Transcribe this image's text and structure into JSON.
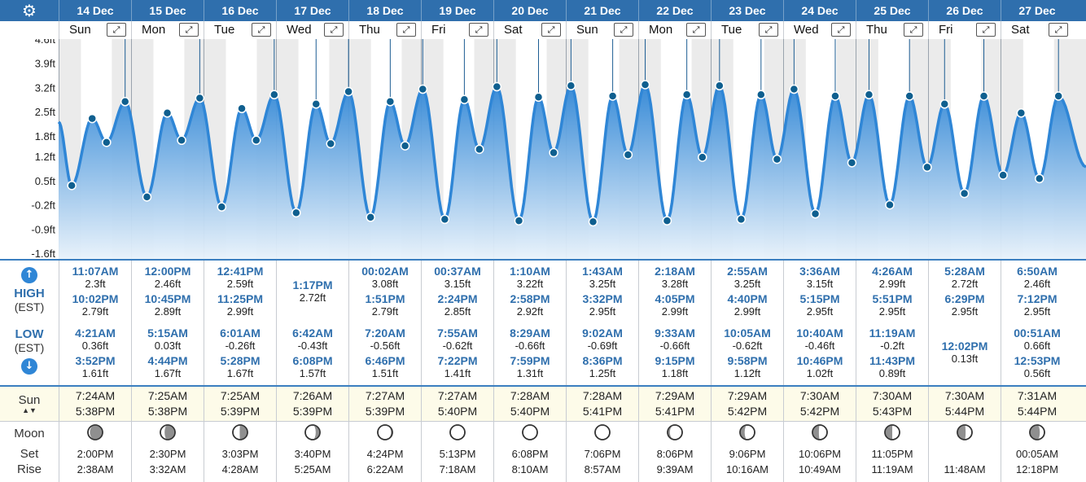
{
  "header": {
    "settings_icon": "gear-icon",
    "expand_icon_glyph": "⤢"
  },
  "days": [
    {
      "date": "14 Dec",
      "dow": "Sun",
      "high": [
        {
          "time": "11:07AM",
          "height": "2.3ft"
        },
        {
          "time": "10:02PM",
          "height": "2.79ft"
        }
      ],
      "low": [
        {
          "time": "4:21AM",
          "height": "0.36ft"
        },
        {
          "time": "3:52PM",
          "height": "1.61ft"
        }
      ],
      "sunrise": "7:24AM",
      "sunset": "5:38PM",
      "moon_set": "2:00PM",
      "moon_rise": "2:38AM",
      "moon_phase": 0.62
    },
    {
      "date": "15 Dec",
      "dow": "Mon",
      "high": [
        {
          "time": "12:00PM",
          "height": "2.46ft"
        },
        {
          "time": "10:45PM",
          "height": "2.89ft"
        }
      ],
      "low": [
        {
          "time": "5:15AM",
          "height": "0.03ft"
        },
        {
          "time": "4:44PM",
          "height": "1.67ft"
        }
      ],
      "sunrise": "7:25AM",
      "sunset": "5:38PM",
      "moon_set": "2:30PM",
      "moon_rise": "3:32AM",
      "moon_phase": 0.68
    },
    {
      "date": "16 Dec",
      "dow": "Tue",
      "high": [
        {
          "time": "12:41PM",
          "height": "2.59ft"
        },
        {
          "time": "11:25PM",
          "height": "2.99ft"
        }
      ],
      "low": [
        {
          "time": "6:01AM",
          "height": "-0.26ft"
        },
        {
          "time": "5:28PM",
          "height": "1.67ft"
        }
      ],
      "sunrise": "7:25AM",
      "sunset": "5:39PM",
      "moon_set": "3:03PM",
      "moon_rise": "4:28AM",
      "moon_phase": 0.74
    },
    {
      "date": "17 Dec",
      "dow": "Wed",
      "high": [
        {
          "time": "1:17PM",
          "height": "2.72ft"
        }
      ],
      "low": [
        {
          "time": "6:42AM",
          "height": "-0.43ft"
        },
        {
          "time": "6:08PM",
          "height": "1.57ft"
        }
      ],
      "sunrise": "7:26AM",
      "sunset": "5:39PM",
      "moon_set": "3:40PM",
      "moon_rise": "5:25AM",
      "moon_phase": 0.82
    },
    {
      "date": "18 Dec",
      "dow": "Thu",
      "high": [
        {
          "time": "00:02AM",
          "height": "3.08ft"
        },
        {
          "time": "1:51PM",
          "height": "2.79ft"
        }
      ],
      "low": [
        {
          "time": "7:20AM",
          "height": "-0.56ft"
        },
        {
          "time": "6:46PM",
          "height": "1.51ft"
        }
      ],
      "sunrise": "7:27AM",
      "sunset": "5:39PM",
      "moon_set": "4:24PM",
      "moon_rise": "6:22AM",
      "moon_phase": 0.9
    },
    {
      "date": "19 Dec",
      "dow": "Fri",
      "high": [
        {
          "time": "00:37AM",
          "height": "3.15ft"
        },
        {
          "time": "2:24PM",
          "height": "2.85ft"
        }
      ],
      "low": [
        {
          "time": "7:55AM",
          "height": "-0.62ft"
        },
        {
          "time": "7:22PM",
          "height": "1.41ft"
        }
      ],
      "sunrise": "7:27AM",
      "sunset": "5:40PM",
      "moon_set": "5:13PM",
      "moon_rise": "7:18AM",
      "moon_phase": 0.97
    },
    {
      "date": "20 Dec",
      "dow": "Sat",
      "high": [
        {
          "time": "1:10AM",
          "height": "3.22ft"
        },
        {
          "time": "2:58PM",
          "height": "2.92ft"
        }
      ],
      "low": [
        {
          "time": "8:29AM",
          "height": "-0.66ft"
        },
        {
          "time": "7:59PM",
          "height": "1.31ft"
        }
      ],
      "sunrise": "7:28AM",
      "sunset": "5:40PM",
      "moon_set": "6:08PM",
      "moon_rise": "8:10AM",
      "moon_phase": 0.02
    },
    {
      "date": "21 Dec",
      "dow": "Sun",
      "high": [
        {
          "time": "1:43AM",
          "height": "3.25ft"
        },
        {
          "time": "3:32PM",
          "height": "2.95ft"
        }
      ],
      "low": [
        {
          "time": "9:02AM",
          "height": "-0.69ft"
        },
        {
          "time": "8:36PM",
          "height": "1.25ft"
        }
      ],
      "sunrise": "7:28AM",
      "sunset": "5:41PM",
      "moon_set": "7:06PM",
      "moon_rise": "8:57AM",
      "moon_phase": 0.07
    },
    {
      "date": "22 Dec",
      "dow": "Mon",
      "high": [
        {
          "time": "2:18AM",
          "height": "3.28ft"
        },
        {
          "time": "4:05PM",
          "height": "2.99ft"
        }
      ],
      "low": [
        {
          "time": "9:33AM",
          "height": "-0.66ft"
        },
        {
          "time": "9:15PM",
          "height": "1.18ft"
        }
      ],
      "sunrise": "7:29AM",
      "sunset": "5:41PM",
      "moon_set": "8:06PM",
      "moon_rise": "9:39AM",
      "moon_phase": 0.13
    },
    {
      "date": "23 Dec",
      "dow": "Tue",
      "high": [
        {
          "time": "2:55AM",
          "height": "3.25ft"
        },
        {
          "time": "4:40PM",
          "height": "2.99ft"
        }
      ],
      "low": [
        {
          "time": "10:05AM",
          "height": "-0.62ft"
        },
        {
          "time": "9:58PM",
          "height": "1.12ft"
        }
      ],
      "sunrise": "7:29AM",
      "sunset": "5:42PM",
      "moon_set": "9:06PM",
      "moon_rise": "10:16AM",
      "moon_phase": 0.19
    },
    {
      "date": "24 Dec",
      "dow": "Wed",
      "high": [
        {
          "time": "3:36AM",
          "height": "3.15ft"
        },
        {
          "time": "5:15PM",
          "height": "2.95ft"
        }
      ],
      "low": [
        {
          "time": "10:40AM",
          "height": "-0.46ft"
        },
        {
          "time": "10:46PM",
          "height": "1.02ft"
        }
      ],
      "sunrise": "7:30AM",
      "sunset": "5:42PM",
      "moon_set": "10:06PM",
      "moon_rise": "10:49AM",
      "moon_phase": 0.23
    },
    {
      "date": "25 Dec",
      "dow": "Thu",
      "high": [
        {
          "time": "4:26AM",
          "height": "2.99ft"
        },
        {
          "time": "5:51PM",
          "height": "2.95ft"
        }
      ],
      "low": [
        {
          "time": "11:19AM",
          "height": "-0.2ft"
        },
        {
          "time": "11:43PM",
          "height": "0.89ft"
        }
      ],
      "sunrise": "7:30AM",
      "sunset": "5:43PM",
      "moon_set": "11:05PM",
      "moon_rise": "11:19AM",
      "moon_phase": 0.25
    },
    {
      "date": "26 Dec",
      "dow": "Fri",
      "high": [
        {
          "time": "5:28AM",
          "height": "2.72ft"
        },
        {
          "time": "6:29PM",
          "height": "2.95ft"
        }
      ],
      "low": [
        {
          "time": "12:02PM",
          "height": "0.13ft"
        }
      ],
      "sunrise": "7:30AM",
      "sunset": "5:44PM",
      "moon_set": "",
      "moon_rise": "11:48AM",
      "moon_phase": 0.27
    },
    {
      "date": "27 Dec",
      "dow": "Sat",
      "high": [
        {
          "time": "6:50AM",
          "height": "2.46ft"
        },
        {
          "time": "7:12PM",
          "height": "2.95ft"
        }
      ],
      "low": [
        {
          "time": "00:51AM",
          "height": "0.66ft"
        },
        {
          "time": "12:53PM",
          "height": "0.56ft"
        }
      ],
      "sunrise": "7:31AM",
      "sunset": "5:44PM",
      "moon_set": "00:05AM",
      "moon_rise": "12:18PM",
      "moon_phase": 0.31
    }
  ],
  "labels": {
    "high": "HIGH",
    "low": "LOW",
    "timezone": "(EST)",
    "sun": "Sun",
    "moon": "Moon",
    "set": "Set",
    "rise": "Rise",
    "up_icon": "arrow-up-icon",
    "down_icon": "arrow-down-icon"
  },
  "chart_data": {
    "type": "area",
    "y_unit": "ft",
    "y_ticks": [
      "4.6ft",
      "3.9ft",
      "3.2ft",
      "2.5ft",
      "1.8ft",
      "1.2ft",
      "0.5ft",
      "-0.2ft",
      "-0.9ft",
      "-1.6ft"
    ],
    "ylim": [
      -1.6,
      4.6
    ],
    "grid": "vertical day shading (night bands)",
    "start_value": 2.2,
    "end_value": 0.9,
    "series": [
      {
        "points": [
          {
            "date": "14 Dec",
            "time": "4:21AM",
            "height": 0.36
          },
          {
            "date": "14 Dec",
            "time": "11:07AM",
            "height": 2.3
          },
          {
            "date": "14 Dec",
            "time": "3:52PM",
            "height": 1.61
          },
          {
            "date": "14 Dec",
            "time": "10:02PM",
            "height": 2.79
          },
          {
            "date": "15 Dec",
            "time": "5:15AM",
            "height": 0.03
          },
          {
            "date": "15 Dec",
            "time": "12:00PM",
            "height": 2.46
          },
          {
            "date": "15 Dec",
            "time": "4:44PM",
            "height": 1.67
          },
          {
            "date": "15 Dec",
            "time": "10:45PM",
            "height": 2.89
          },
          {
            "date": "16 Dec",
            "time": "6:01AM",
            "height": -0.26
          },
          {
            "date": "16 Dec",
            "time": "12:41PM",
            "height": 2.59
          },
          {
            "date": "16 Dec",
            "time": "5:28PM",
            "height": 1.67
          },
          {
            "date": "16 Dec",
            "time": "11:25PM",
            "height": 2.99
          },
          {
            "date": "17 Dec",
            "time": "6:42AM",
            "height": -0.43
          },
          {
            "date": "17 Dec",
            "time": "1:17PM",
            "height": 2.72
          },
          {
            "date": "17 Dec",
            "time": "6:08PM",
            "height": 1.57
          },
          {
            "date": "18 Dec",
            "time": "00:02AM",
            "height": 3.08
          },
          {
            "date": "18 Dec",
            "time": "7:20AM",
            "height": -0.56
          },
          {
            "date": "18 Dec",
            "time": "1:51PM",
            "height": 2.79
          },
          {
            "date": "18 Dec",
            "time": "6:46PM",
            "height": 1.51
          },
          {
            "date": "19 Dec",
            "time": "00:37AM",
            "height": 3.15
          },
          {
            "date": "19 Dec",
            "time": "7:55AM",
            "height": -0.62
          },
          {
            "date": "19 Dec",
            "time": "2:24PM",
            "height": 2.85
          },
          {
            "date": "19 Dec",
            "time": "7:22PM",
            "height": 1.41
          },
          {
            "date": "20 Dec",
            "time": "1:10AM",
            "height": 3.22
          },
          {
            "date": "20 Dec",
            "time": "8:29AM",
            "height": -0.66
          },
          {
            "date": "20 Dec",
            "time": "2:58PM",
            "height": 2.92
          },
          {
            "date": "20 Dec",
            "time": "7:59PM",
            "height": 1.31
          },
          {
            "date": "21 Dec",
            "time": "1:43AM",
            "height": 3.25
          },
          {
            "date": "21 Dec",
            "time": "9:02AM",
            "height": -0.69
          },
          {
            "date": "21 Dec",
            "time": "3:32PM",
            "height": 2.95
          },
          {
            "date": "21 Dec",
            "time": "8:36PM",
            "height": 1.25
          },
          {
            "date": "22 Dec",
            "time": "2:18AM",
            "height": 3.28
          },
          {
            "date": "22 Dec",
            "time": "9:33AM",
            "height": -0.66
          },
          {
            "date": "22 Dec",
            "time": "4:05PM",
            "height": 2.99
          },
          {
            "date": "22 Dec",
            "time": "9:15PM",
            "height": 1.18
          },
          {
            "date": "23 Dec",
            "time": "2:55AM",
            "height": 3.25
          },
          {
            "date": "23 Dec",
            "time": "10:05AM",
            "height": -0.62
          },
          {
            "date": "23 Dec",
            "time": "4:40PM",
            "height": 2.99
          },
          {
            "date": "23 Dec",
            "time": "9:58PM",
            "height": 1.12
          },
          {
            "date": "24 Dec",
            "time": "3:36AM",
            "height": 3.15
          },
          {
            "date": "24 Dec",
            "time": "10:40AM",
            "height": -0.46
          },
          {
            "date": "24 Dec",
            "time": "5:15PM",
            "height": 2.95
          },
          {
            "date": "24 Dec",
            "time": "10:46PM",
            "height": 1.02
          },
          {
            "date": "25 Dec",
            "time": "4:26AM",
            "height": 2.99
          },
          {
            "date": "25 Dec",
            "time": "11:19AM",
            "height": -0.2
          },
          {
            "date": "25 Dec",
            "time": "5:51PM",
            "height": 2.95
          },
          {
            "date": "25 Dec",
            "time": "11:43PM",
            "height": 0.89
          },
          {
            "date": "26 Dec",
            "time": "5:28AM",
            "height": 2.72
          },
          {
            "date": "26 Dec",
            "time": "12:02PM",
            "height": 0.13
          },
          {
            "date": "26 Dec",
            "time": "6:29PM",
            "height": 2.95
          },
          {
            "date": "27 Dec",
            "time": "00:51AM",
            "height": 0.66
          },
          {
            "date": "27 Dec",
            "time": "6:50AM",
            "height": 2.46
          },
          {
            "date": "27 Dec",
            "time": "12:53PM",
            "height": 0.56
          },
          {
            "date": "27 Dec",
            "time": "7:12PM",
            "height": 2.95
          }
        ]
      }
    ]
  },
  "colors": {
    "header_bg": "#2f6fad",
    "accent": "#2f86d6",
    "line": "#2f86d6",
    "marker": "#0f5f8f",
    "fill_top": "#2f86d6",
    "fill_bottom": "#e8f2fb",
    "night_band": "#ebebeb",
    "sun_row_bg": "#fdfbe9",
    "time_text": "#2f6fad"
  }
}
